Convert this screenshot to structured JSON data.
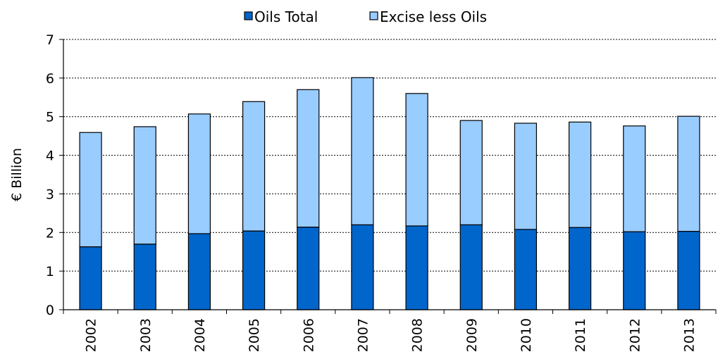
{
  "chart_data": {
    "type": "bar",
    "stacked": true,
    "title": "",
    "xlabel": "",
    "ylabel": "€ Billion",
    "ylim": [
      0,
      7
    ],
    "yticks": [
      0,
      1,
      2,
      3,
      4,
      5,
      6,
      7
    ],
    "grid": true,
    "legend_position": "top",
    "categories": [
      "2002",
      "2003",
      "2004",
      "2005",
      "2006",
      "2007",
      "2008",
      "2009",
      "2010",
      "2011",
      "2012",
      "2013"
    ],
    "series": [
      {
        "name": "Oils Total",
        "color": "#0066cc",
        "values": [
          1.63,
          1.7,
          1.97,
          2.04,
          2.14,
          2.2,
          2.17,
          2.2,
          2.08,
          2.13,
          2.02,
          2.03
        ]
      },
      {
        "name": "Excise less Oils",
        "color": "#99ccff",
        "values": [
          2.96,
          3.04,
          3.1,
          3.35,
          3.56,
          3.81,
          3.43,
          2.7,
          2.75,
          2.73,
          2.74,
          2.98
        ]
      }
    ]
  }
}
